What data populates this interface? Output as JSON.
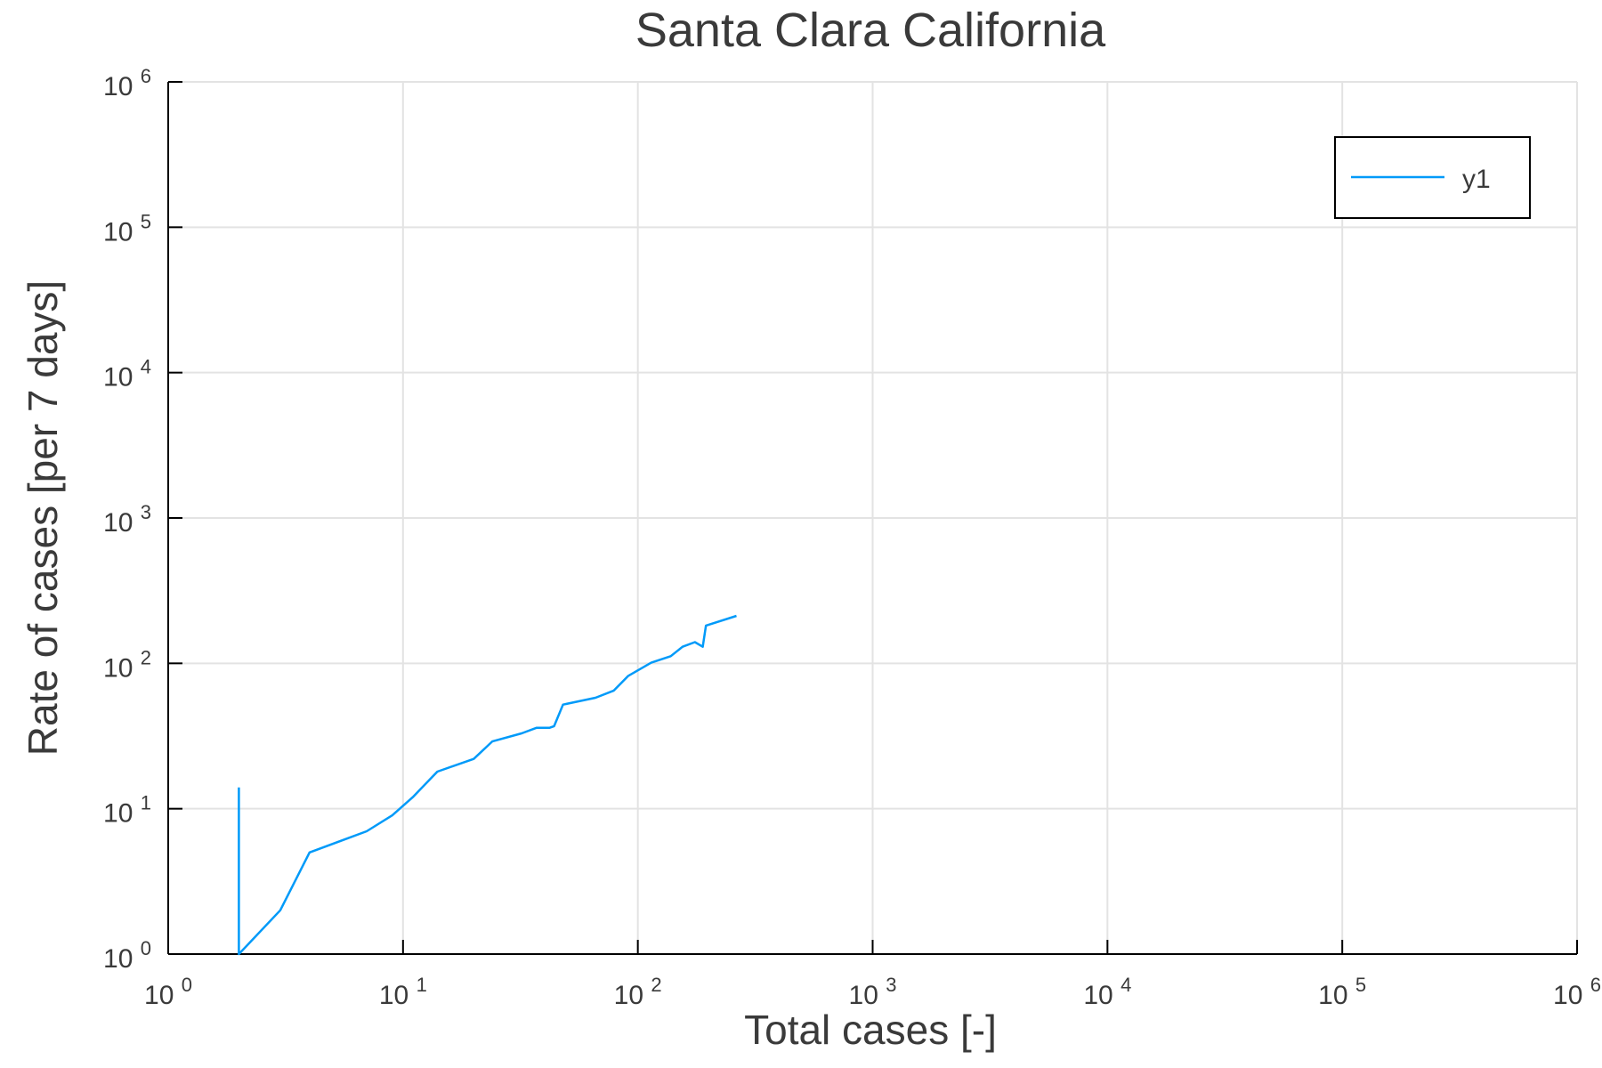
{
  "chart_data": {
    "type": "line",
    "title": "Santa Clara California",
    "xlabel": "Total cases [-]",
    "ylabel": "Rate of cases [per 7 days]",
    "xscale": "log",
    "yscale": "log",
    "xlim": [
      1,
      1000000
    ],
    "ylim": [
      1,
      1000000
    ],
    "grid": true,
    "legend_position": "top-right",
    "x_tick_exponents": [
      "0",
      "1",
      "2",
      "3",
      "4",
      "5",
      "6"
    ],
    "y_tick_exponents": [
      "0",
      "1",
      "2",
      "3",
      "4",
      "5",
      "6"
    ],
    "tick_base": "10",
    "series": [
      {
        "name": "y1",
        "color": "#009af9",
        "x": [
          2,
          2,
          3,
          4,
          7,
          9,
          11,
          14,
          20,
          24,
          32,
          37,
          42,
          44,
          48,
          66,
          79,
          91,
          114,
          138,
          155,
          175,
          189,
          195,
          263
        ],
        "y": [
          14,
          1,
          2,
          5,
          7,
          9,
          12,
          18,
          22,
          29,
          33,
          36,
          36,
          37,
          52,
          58,
          65,
          82,
          101,
          112,
          130,
          140,
          130,
          182,
          212
        ]
      }
    ]
  }
}
